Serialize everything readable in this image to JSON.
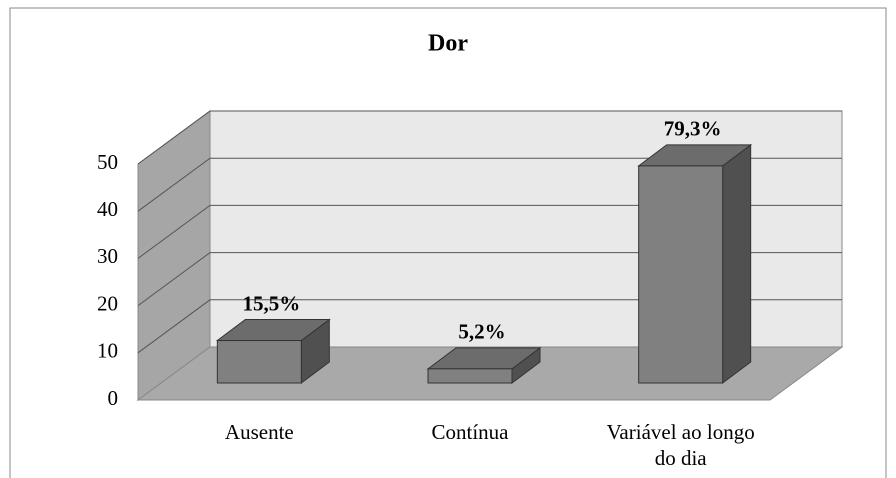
{
  "chart_data": {
    "type": "bar3d",
    "title": "Dor",
    "categories": [
      "Ausente",
      "Contínua",
      "Variável ao longo do dia"
    ],
    "values": [
      9,
      3,
      46
    ],
    "annotations": [
      "15,5%",
      "5,2%",
      "79,3%"
    ],
    "ylim": [
      0,
      50
    ],
    "yticks": [
      0,
      10,
      20,
      30,
      40,
      50
    ],
    "grid": true,
    "color": "#808080"
  }
}
